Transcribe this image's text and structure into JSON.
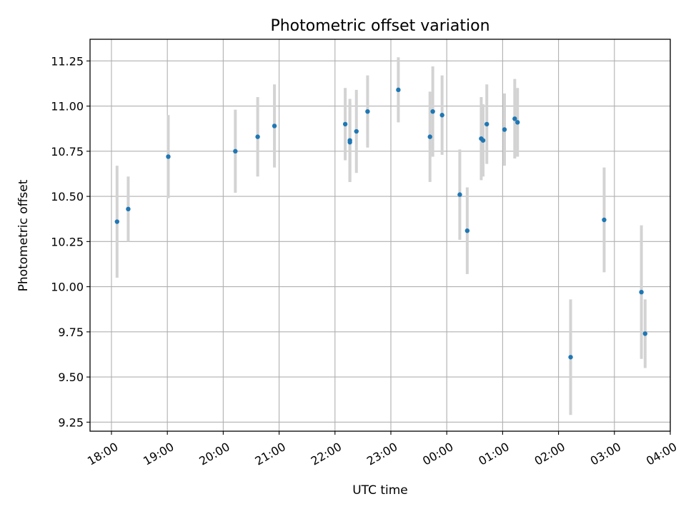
{
  "chart_data": {
    "type": "scatter",
    "title": "Photometric offset variation",
    "xlabel": "UTC time",
    "ylabel": "Photometric offset",
    "x_ticks": [
      "18:00",
      "19:00",
      "20:00",
      "21:00",
      "22:00",
      "23:00",
      "00:00",
      "01:00",
      "02:00",
      "03:00",
      "04:00"
    ],
    "y_ticks": [
      "9.25",
      "9.50",
      "9.75",
      "10.00",
      "10.25",
      "10.50",
      "10.75",
      "11.00",
      "11.25"
    ],
    "xlim": [
      "17:37",
      "04:00"
    ],
    "ylim": [
      9.2,
      11.37
    ],
    "grid": true,
    "colors": {
      "point": "#1f77b4",
      "errorbar": "#d3d3d3",
      "grid": "#b0b0b0"
    },
    "series": [
      {
        "points": [
          {
            "x": "18:06",
            "y": 10.36,
            "err": 0.31
          },
          {
            "x": "18:18",
            "y": 10.43,
            "err": 0.18
          },
          {
            "x": "19:01",
            "y": 10.72,
            "err": 0.23
          },
          {
            "x": "20:13",
            "y": 10.75,
            "err": 0.23
          },
          {
            "x": "20:37",
            "y": 10.83,
            "err": 0.22
          },
          {
            "x": "20:55",
            "y": 10.89,
            "err": 0.23
          },
          {
            "x": "22:11",
            "y": 10.9,
            "err": 0.2
          },
          {
            "x": "22:16",
            "y": 10.8,
            "err": 0.22
          },
          {
            "x": "22:16",
            "y": 10.81,
            "err": 0.23
          },
          {
            "x": "22:23",
            "y": 10.86,
            "err": 0.23
          },
          {
            "x": "22:35",
            "y": 10.97,
            "err": 0.2
          },
          {
            "x": "23:08",
            "y": 11.09,
            "err": 0.18
          },
          {
            "x": "23:42",
            "y": 10.83,
            "err": 0.25
          },
          {
            "x": "23:45",
            "y": 10.97,
            "err": 0.25
          },
          {
            "x": "23:55",
            "y": 10.95,
            "err": 0.22
          },
          {
            "x": "00:14",
            "y": 10.51,
            "err": 0.25
          },
          {
            "x": "00:22",
            "y": 10.31,
            "err": 0.24
          },
          {
            "x": "00:37",
            "y": 10.82,
            "err": 0.23
          },
          {
            "x": "00:39",
            "y": 10.81,
            "err": 0.2
          },
          {
            "x": "00:43",
            "y": 10.9,
            "err": 0.22
          },
          {
            "x": "01:02",
            "y": 10.87,
            "err": 0.2
          },
          {
            "x": "01:13",
            "y": 10.93,
            "err": 0.22
          },
          {
            "x": "01:16",
            "y": 10.91,
            "err": 0.19
          },
          {
            "x": "02:13",
            "y": 9.61,
            "err": 0.32
          },
          {
            "x": "02:49",
            "y": 10.37,
            "err": 0.29
          },
          {
            "x": "03:29",
            "y": 9.97,
            "err": 0.37
          },
          {
            "x": "03:33",
            "y": 9.74,
            "err": 0.19
          }
        ]
      }
    ]
  }
}
